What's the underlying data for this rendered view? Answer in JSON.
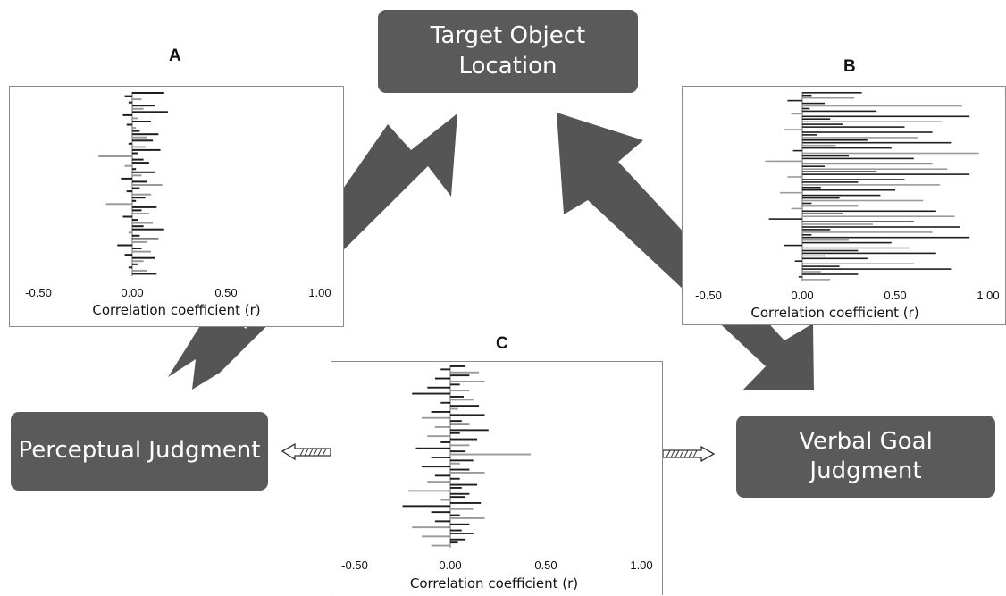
{
  "nodes": {
    "target": "Target Object\nLocation",
    "perceptual": "Perceptual Judgment",
    "verbal": "Verbal Goal\nJudgment"
  },
  "colors": {
    "node_fill": "#5a5a5a",
    "arrow_fill": "#555555",
    "bar_dark": "#1e1e1e",
    "bar_light": "#9a9a9a"
  },
  "chart_data": [
    {
      "panel": "A",
      "type": "bar",
      "xlabel": "Correlation coefficient (r)",
      "xticks": [
        "-0.50",
        "0.00",
        "0.50",
        "1.00"
      ],
      "xlim": [
        -0.6,
        1.1
      ],
      "values": [
        0.17,
        -0.04,
        0.05,
        -0.02,
        0.12,
        0.06,
        0.19,
        -0.05,
        0.03,
        0.1,
        -0.03,
        0.02,
        0.04,
        0.14,
        0.08,
        0.11,
        -0.02,
        0.07,
        0.15,
        0.03,
        -0.18,
        0.06,
        0.09,
        -0.04,
        0.02,
        0.12,
        0.05,
        -0.06,
        0.08,
        0.16,
        0.04,
        -0.03,
        0.1,
        0.07,
        0.02,
        -0.14,
        0.13,
        0.05,
        0.09,
        -0.05,
        0.03,
        0.11,
        0.06,
        0.17,
        -0.02,
        0.04,
        0.14,
        0.08,
        -0.08,
        0.05,
        0.1,
        -0.04,
        0.12,
        0.06,
        0.03,
        -0.02,
        0.08,
        0.13
      ]
    },
    {
      "panel": "B",
      "type": "bar",
      "xlabel": "Correlation coefficient (r)",
      "xticks": [
        "-0.50",
        "0.00",
        "0.50",
        "1.00"
      ],
      "xlim": [
        -0.6,
        1.1
      ],
      "values": [
        0.32,
        0.05,
        0.28,
        -0.08,
        0.12,
        0.86,
        0.04,
        0.4,
        -0.06,
        0.9,
        0.15,
        0.75,
        0.22,
        0.55,
        -0.1,
        0.7,
        0.08,
        0.62,
        0.35,
        0.8,
        0.18,
        0.48,
        -0.05,
        0.95,
        0.25,
        0.6,
        -0.2,
        0.7,
        0.12,
        0.78,
        0.4,
        0.9,
        -0.08,
        0.55,
        0.3,
        0.74,
        0.1,
        0.5,
        -0.12,
        0.42,
        0.2,
        0.65,
        0.05,
        0.3,
        -0.06,
        0.72,
        0.22,
        0.82,
        -0.18,
        0.6,
        0.38,
        0.85,
        0.15,
        0.7,
        0.05,
        0.9,
        0.25,
        0.48,
        -0.1,
        0.58,
        0.3,
        0.72,
        0.12,
        0.35,
        -0.04,
        0.6,
        0.2,
        0.8,
        0.1,
        0.3,
        -0.02,
        0.15
      ]
    },
    {
      "panel": "C",
      "type": "bar",
      "xlabel": "Correlation coefficient (r)",
      "xticks": [
        "-0.50",
        "0.00",
        "0.50",
        "1.00"
      ],
      "xlim": [
        -0.6,
        1.1
      ],
      "values": [
        0.08,
        -0.05,
        0.15,
        0.1,
        -0.08,
        0.18,
        0.05,
        -0.12,
        0.1,
        -0.2,
        0.07,
        0.12,
        -0.05,
        0.15,
        0.04,
        -0.1,
        0.18,
        -0.15,
        0.06,
        0.1,
        -0.08,
        0.2,
        0.05,
        -0.12,
        0.14,
        -0.05,
        0.1,
        -0.18,
        0.08,
        0.42,
        -0.1,
        0.12,
        0.05,
        -0.15,
        0.1,
        0.18,
        -0.08,
        0.05,
        -0.12,
        0.14,
        0.06,
        -0.22,
        0.1,
        0.08,
        -0.05,
        0.16,
        -0.25,
        0.12,
        -0.1,
        0.05,
        0.18,
        -0.08,
        0.1,
        -0.2,
        0.06,
        0.12,
        -0.15,
        0.08,
        0.04,
        -0.1
      ]
    }
  ]
}
